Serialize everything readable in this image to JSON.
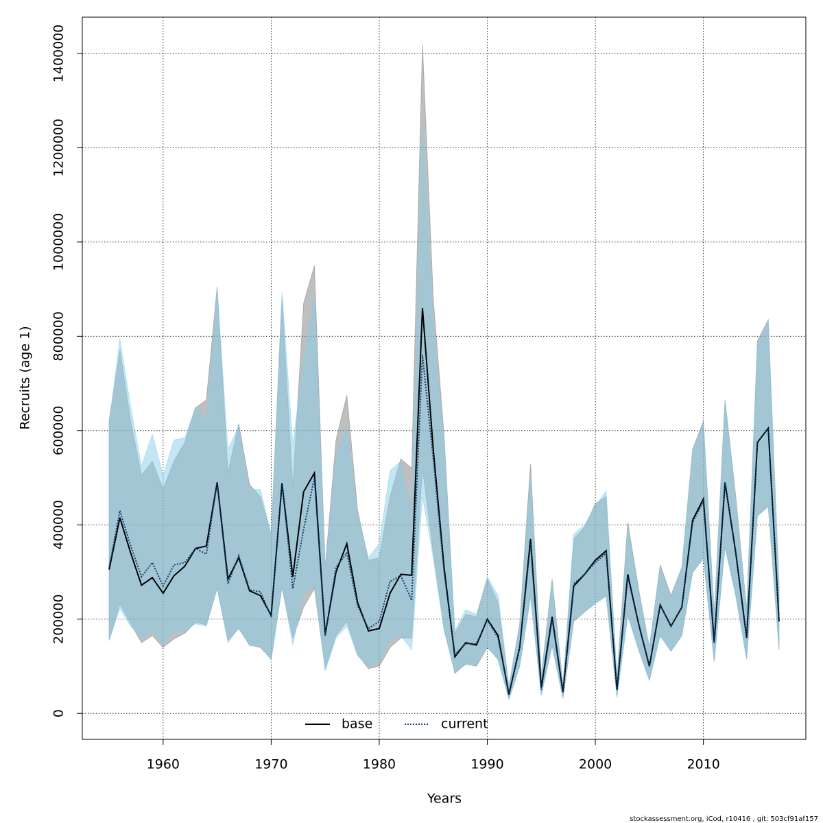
{
  "chart_data": {
    "type": "line",
    "x_label": "Years",
    "y_label": "Recruits (age 1)",
    "footnote": "stockassessment.org, iCod, r10416 , git: 503cf91af157",
    "x": [
      1955,
      1956,
      1957,
      1958,
      1959,
      1960,
      1961,
      1962,
      1963,
      1964,
      1965,
      1966,
      1967,
      1968,
      1969,
      1970,
      1971,
      1972,
      1973,
      1974,
      1975,
      1976,
      1977,
      1978,
      1979,
      1980,
      1981,
      1982,
      1983,
      1984,
      1985,
      1986,
      1987,
      1988,
      1989,
      1990,
      1991,
      1992,
      1993,
      1994,
      1995,
      1996,
      1997,
      1998,
      1999,
      2000,
      2001,
      2002,
      2003,
      2004,
      2005,
      2006,
      2007,
      2008,
      2009,
      2010,
      2011,
      2012,
      2013,
      2014,
      2015,
      2016,
      2017
    ],
    "series": [
      {
        "name": "base",
        "color": "#000000",
        "band_color": "rgba(128,128,128,0.5)",
        "dash": false,
        "values": [
          305000,
          415000,
          340000,
          272000,
          288000,
          255000,
          292000,
          312000,
          350000,
          355000,
          490000,
          285000,
          330000,
          260000,
          250000,
          208000,
          488000,
          290000,
          470000,
          510000,
          168000,
          300000,
          360000,
          235000,
          175000,
          180000,
          255000,
          295000,
          293000,
          860000,
          560000,
          310000,
          120000,
          150000,
          145000,
          200000,
          165000,
          40000,
          140000,
          370000,
          55000,
          205000,
          45000,
          270000,
          295000,
          325000,
          345000,
          50000,
          295000,
          190000,
          100000,
          230000,
          185000,
          225000,
          410000,
          455000,
          150000,
          490000,
          340000,
          160000,
          575000,
          605000,
          195000
        ],
        "lower": [
          155000,
          232000,
          190000,
          150000,
          165000,
          140000,
          158000,
          170000,
          193000,
          188000,
          265000,
          155000,
          180000,
          145000,
          140000,
          115000,
          268000,
          160000,
          225000,
          265000,
          95000,
          165000,
          195000,
          125000,
          95000,
          100000,
          140000,
          160000,
          160000,
          520000,
          340000,
          180000,
          85000,
          105000,
          100000,
          140000,
          115000,
          30000,
          100000,
          250000,
          40000,
          145000,
          32000,
          195000,
          215000,
          235000,
          250000,
          35000,
          210000,
          135000,
          70000,
          165000,
          132000,
          165000,
          300000,
          330000,
          110000,
          355000,
          250000,
          115000,
          420000,
          440000,
          135000
        ],
        "upper": [
          620000,
          770000,
          620000,
          505000,
          535000,
          475000,
          535000,
          575000,
          648000,
          665000,
          905000,
          510000,
          615000,
          485000,
          460000,
          380000,
          880000,
          480000,
          870000,
          950000,
          310000,
          580000,
          675000,
          430000,
          325000,
          330000,
          460000,
          540000,
          520000,
          1420000,
          880000,
          590000,
          170000,
          210000,
          205000,
          285000,
          235000,
          55000,
          190000,
          530000,
          80000,
          285000,
          60000,
          370000,
          395000,
          445000,
          460000,
          75000,
          405000,
          265000,
          140000,
          315000,
          250000,
          310000,
          560000,
          620000,
          210000,
          665000,
          460000,
          220000,
          790000,
          835000,
          270000
        ]
      },
      {
        "name": "current",
        "color": "#0b3d6b",
        "band_color": "rgba(135,206,235,0.5)",
        "dash": true,
        "values": [
          310000,
          430000,
          355000,
          290000,
          320000,
          270000,
          315000,
          320000,
          350000,
          338000,
          490000,
          275000,
          335000,
          262000,
          258000,
          205000,
          490000,
          265000,
          390000,
          500000,
          165000,
          310000,
          340000,
          228000,
          180000,
          195000,
          280000,
          292000,
          240000,
          760000,
          540000,
          300000,
          125000,
          148000,
          148000,
          198000,
          160000,
          42000,
          140000,
          360000,
          50000,
          200000,
          45000,
          275000,
          295000,
          320000,
          340000,
          50000,
          290000,
          190000,
          100000,
          230000,
          185000,
          225000,
          405000,
          450000,
          150000,
          490000,
          340000,
          160000,
          575000,
          605000,
          195000
        ],
        "lower": [
          155000,
          222000,
          185000,
          160000,
          175000,
          148000,
          172000,
          175000,
          190000,
          185000,
          265000,
          150000,
          182000,
          143000,
          145000,
          113000,
          268000,
          145000,
          252000,
          272000,
          90000,
          160000,
          185000,
          122000,
          100000,
          110000,
          155000,
          165000,
          135000,
          460000,
          330000,
          175000,
          88000,
          103000,
          103000,
          142000,
          113000,
          30000,
          100000,
          245000,
          38000,
          142000,
          32000,
          198000,
          215000,
          232000,
          248000,
          35000,
          207000,
          135000,
          70000,
          165000,
          132000,
          165000,
          298000,
          328000,
          110000,
          352000,
          248000,
          115000,
          418000,
          438000,
          135000
        ],
        "upper": [
          615000,
          795000,
          650000,
          525000,
          592000,
          505000,
          580000,
          585000,
          650000,
          620000,
          900000,
          560000,
          610000,
          475000,
          475000,
          380000,
          895000,
          570000,
          750000,
          890000,
          300000,
          545000,
          610000,
          420000,
          330000,
          360000,
          515000,
          535000,
          425000,
          1260000,
          820000,
          580000,
          175000,
          220000,
          210000,
          290000,
          250000,
          60000,
          190000,
          500000,
          75000,
          275000,
          60000,
          380000,
          400000,
          440000,
          472000,
          75000,
          395000,
          260000,
          140000,
          310000,
          245000,
          310000,
          555000,
          615000,
          210000,
          660000,
          455000,
          220000,
          785000,
          830000,
          270000
        ]
      }
    ],
    "xlim": [
      1952.52,
      2019.48
    ],
    "ylim": [
      -55000,
      1477000
    ],
    "xticks": [
      1960,
      1970,
      1980,
      1990,
      2000,
      2010
    ],
    "yticks": [
      0,
      200000,
      400000,
      600000,
      800000,
      1000000,
      1200000,
      1400000
    ],
    "grid": true,
    "legend": "bottom"
  }
}
